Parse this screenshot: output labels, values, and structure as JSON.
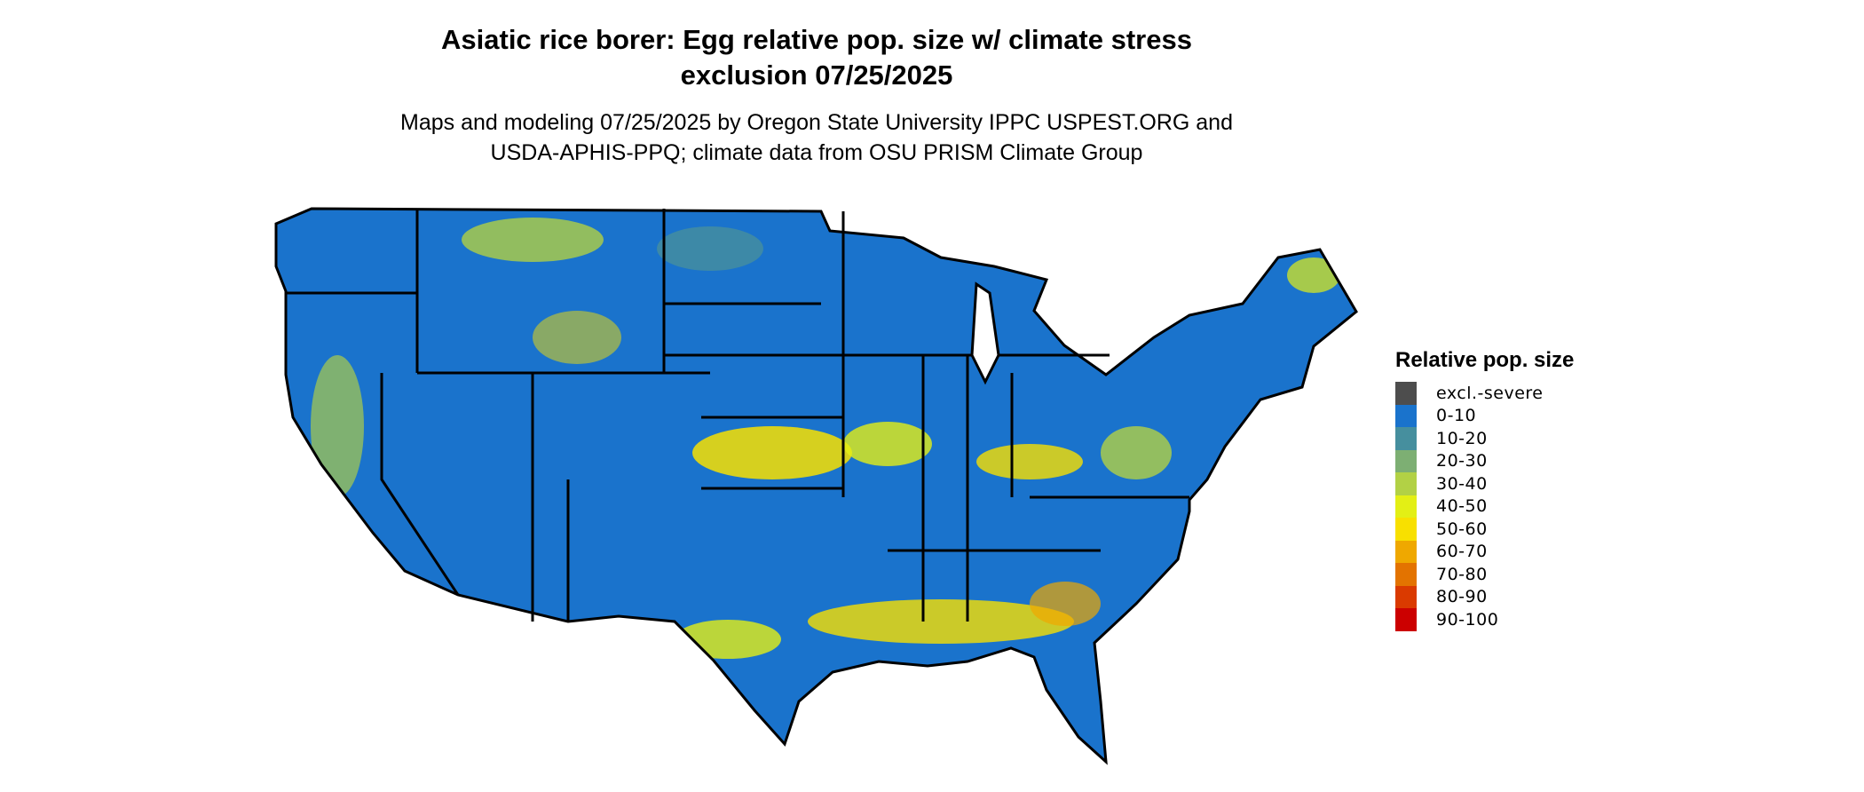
{
  "title": {
    "line1": "Asiatic rice borer: Egg relative pop. size w/ climate stress",
    "line2": "exclusion 07/25/2025"
  },
  "subtitle": {
    "line1": "Maps and modeling 07/25/2025 by Oregon State University IPPC USPEST.ORG and",
    "line2": "USDA-APHIS-PPQ; climate data from OSU PRISM Climate Group"
  },
  "legend": {
    "title": "Relative pop. size",
    "items": [
      {
        "label": "excl.-severe",
        "color": "#4d4d4d"
      },
      {
        "label": "0-10",
        "color": "#1a73cc"
      },
      {
        "label": "10-20",
        "color": "#468f9e"
      },
      {
        "label": "20-30",
        "color": "#7daf73"
      },
      {
        "label": "30-40",
        "color": "#b2d145"
      },
      {
        "label": "40-50",
        "color": "#e3ef15"
      },
      {
        "label": "50-60",
        "color": "#f8e000"
      },
      {
        "label": "60-70",
        "color": "#efa800"
      },
      {
        "label": "70-80",
        "color": "#e37300"
      },
      {
        "label": "80-90",
        "color": "#da3a00"
      },
      {
        "label": "90-100",
        "color": "#cc0000"
      }
    ]
  }
}
